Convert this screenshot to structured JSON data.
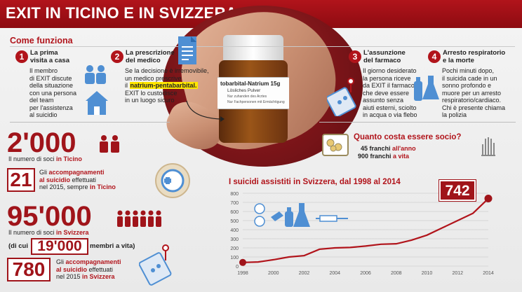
{
  "header": {
    "title": "EXIT IN TICINO E IN SVIZZERA"
  },
  "how_it_works": {
    "heading": "Come funziona",
    "steps": [
      {
        "num": "1",
        "title_line1": "La prima",
        "title_line2": "visita a casa",
        "text": [
          "Il membro",
          "di EXIT discute",
          "della situazione",
          "con una persona",
          "del team",
          "per l'assistenza",
          "al suicidio"
        ]
      },
      {
        "num": "2",
        "title_line1": "La prescrizione",
        "title_line2": "del medico",
        "text_line1": "Se la decisione è irremovibile,",
        "text_line2": "un medico prescrive",
        "text_pre": "il ",
        "highlight": "natrium-pentabarbital.",
        "text_line4": "EXIT lo custodisce",
        "text_line5": "in un luogo sicuro"
      },
      {
        "num": "3",
        "title_line1": "L'assunzione",
        "title_line2": "del farmaco",
        "text": [
          "Il giorno desiderato",
          "la persona riceve",
          "da EXIT il farmaco,",
          "che deve essere",
          "assunto senza",
          "aiuti esterni, sciolto",
          "in acqua o via flebo"
        ]
      },
      {
        "num": "4",
        "title_line1": "Arresto respiratorio",
        "title_line2": "e la morte",
        "text": [
          "Pochi minuti dopo,",
          "il suicida cade in un",
          "sonno profondo e",
          "muore per un arresto",
          "respiratorio/cardiaco.",
          "Chi è presente chiama",
          "la polizia"
        ]
      }
    ]
  },
  "bottle": {
    "label_title": "tobarbital-Natrium 15g",
    "label_sub": "Lösliches Pulver",
    "label_sub2": "Nur zuhanden des Arztes",
    "label_sub3": "Nur Fachpersonen mit Ermächtigung"
  },
  "stats": {
    "ticino_members": "2'000",
    "ticino_members_caption_pre": "Il numero di soci ",
    "ticino_members_caption_red": "in Ticino",
    "ticino_suicides": "21",
    "ticino_caption_l1_pre": "Gli ",
    "ticino_caption_l1_red": "accompagnamenti",
    "ticino_caption_l2_red": "al suicidio",
    "ticino_caption_l2_post": " effettuati",
    "ticino_caption_l3_pre": "nel 2015, sempre ",
    "ticino_caption_l3_red": "in Ticino",
    "swiss_members": "95'000",
    "swiss_members_caption_pre": "Il numero di soci ",
    "swiss_members_caption_red": "in Svizzera",
    "lifetime_pre": "(di cui ",
    "lifetime_value": "19'000",
    "lifetime_post": " membri a vita)",
    "swiss_suicides": "780",
    "swiss_caption_l1_pre": "Gli ",
    "swiss_caption_l1_red": "accompagnamenti",
    "swiss_caption_l2_red": "al suicidio",
    "swiss_caption_l2_post": " effettuati",
    "swiss_caption_l3_pre": "nel 2015 ",
    "swiss_caption_l3_red": "in Svizzera"
  },
  "cost": {
    "title": "Quanto costa essere socio?",
    "annual_amount": "45 franchi",
    "annual_label": " all'anno",
    "lifetime_amount": "900 franchi",
    "lifetime_label": " a vita"
  },
  "colors": {
    "accent": "#b1141b",
    "dark_red": "#a0141a",
    "line": "#b1141b"
  },
  "chart_data": {
    "type": "line",
    "title": "I suicidi assistiti in Svizzera, dal 1998 al 2014",
    "xlabel": "",
    "ylabel": "",
    "x": [
      1998,
      1999,
      2000,
      2001,
      2002,
      2003,
      2004,
      2005,
      2006,
      2007,
      2008,
      2009,
      2010,
      2011,
      2012,
      2013,
      2014
    ],
    "series": [
      {
        "values": [
          40,
          45,
          70,
          100,
          115,
          185,
          200,
          205,
          220,
          240,
          245,
          285,
          340,
          420,
          500,
          580,
          742
        ]
      }
    ],
    "x_ticks": [
      1998,
      2000,
      2002,
      2004,
      2006,
      2008,
      2010,
      2012,
      2014
    ],
    "y_ticks": [
      0,
      100,
      200,
      300,
      400,
      500,
      600,
      700,
      800
    ],
    "xlim": [
      1998,
      2014
    ],
    "ylim": [
      0,
      800
    ],
    "highlight_label": "742",
    "grid": true
  }
}
